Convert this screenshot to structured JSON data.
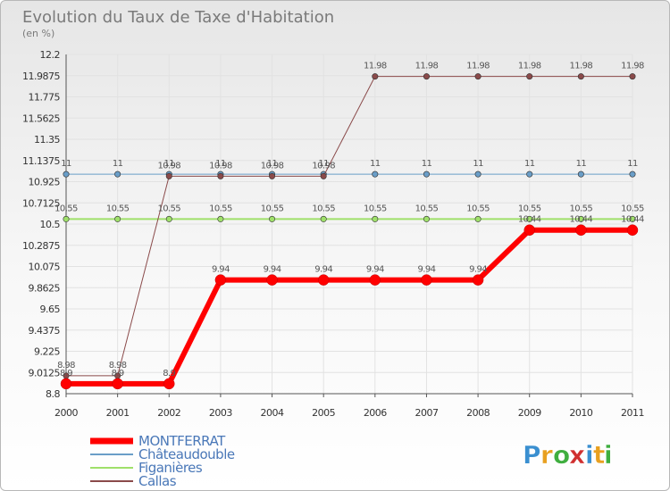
{
  "chart_data": {
    "type": "line",
    "title": "Evolution du Taux de Taxe d'Habitation",
    "subtitle": "(en %)",
    "x": [
      "2000",
      "2001",
      "2002",
      "2003",
      "2004",
      "2005",
      "2006",
      "2007",
      "2008",
      "2009",
      "2010",
      "2011"
    ],
    "ylim": [
      8.8,
      12.2
    ],
    "yticks": [
      "8.8",
      "9.0125",
      "9.225",
      "9.4375",
      "9.65",
      "9.8625",
      "10.075",
      "10.2875",
      "10.5",
      "10.7125",
      "10.925",
      "11.1375",
      "11.35",
      "11.5625",
      "11.775",
      "11.9875",
      "12.2"
    ],
    "grid": true,
    "legend_position": "bottom-left",
    "series": [
      {
        "name": "MONTFERRAT",
        "color": "#ff0000",
        "width": 6,
        "values": [
          8.9,
          8.9,
          8.9,
          9.94,
          9.94,
          9.94,
          9.94,
          9.94,
          9.94,
          10.44,
          10.44,
          10.44
        ]
      },
      {
        "name": "Châteaudouble",
        "color": "#6a9ec8",
        "width": 1,
        "values": [
          11,
          11,
          11,
          11,
          11,
          11,
          11,
          11,
          11,
          11,
          11,
          11
        ]
      },
      {
        "name": "Figanières",
        "color": "#9fe06a",
        "width": 2,
        "values": [
          10.55,
          10.55,
          10.55,
          10.55,
          10.55,
          10.55,
          10.55,
          10.55,
          10.55,
          10.55,
          10.55,
          10.55
        ]
      },
      {
        "name": "Callas",
        "color": "#8a4a4a",
        "width": 1,
        "values": [
          8.98,
          8.98,
          10.98,
          10.98,
          10.98,
          10.98,
          11.98,
          11.98,
          11.98,
          11.98,
          11.98,
          11.98
        ]
      }
    ],
    "data_labels": {
      "MONTFERRAT": [
        "8.9",
        "8.9",
        "8.9",
        "9.94",
        "9.94",
        "9.94",
        "9.94",
        "9.94",
        "9.94",
        "10.44",
        "10.44",
        "10.44"
      ],
      "Châteaudouble": [
        "11",
        "11",
        "11",
        "11",
        "11",
        "11",
        "11",
        "11",
        "11",
        "11",
        "11",
        "11"
      ],
      "Figanières": [
        "10.55",
        "10.55",
        "10.55",
        "10.55",
        "10.55",
        "10.55",
        "10.55",
        "10.55",
        "10.55",
        "10.55",
        "10.55",
        "10.55"
      ],
      "Callas": [
        "8.98",
        "8.98",
        "10.98",
        "10.98",
        "10.98",
        "10.98",
        "11.98",
        "11.98",
        "11.98",
        "11.98",
        "11.98",
        "11.98"
      ]
    }
  },
  "branding": {
    "logo_letters": [
      "P",
      "r",
      "o",
      "x",
      "i",
      "t",
      "i"
    ],
    "logo_colors": [
      "#3a8fd0",
      "#e8a020",
      "#3fae3f",
      "#d03030",
      "#3a8fd0",
      "#e8a020",
      "#3fae3f"
    ]
  }
}
